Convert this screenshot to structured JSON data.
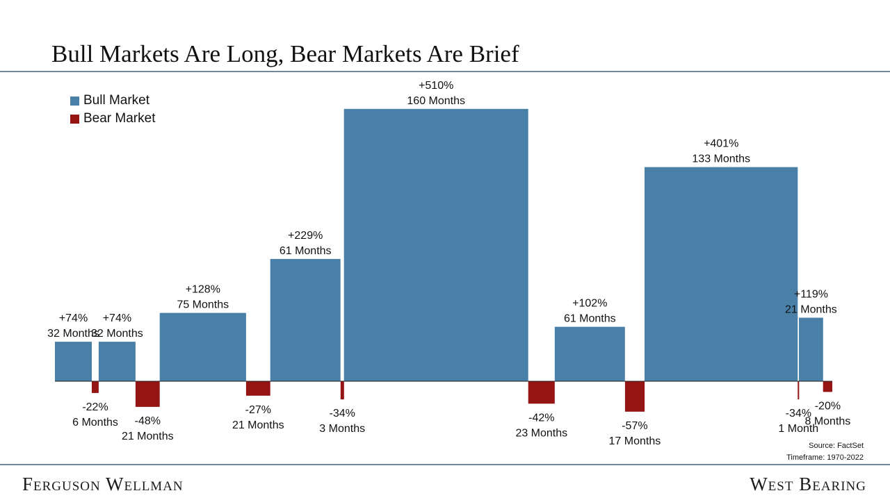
{
  "title": "Bull Markets Are Long, Bear Markets Are Brief",
  "colors": {
    "bull": "#4a80a8",
    "bear": "#951414",
    "rule": "#6f8796"
  },
  "legend": [
    {
      "label": "Bull Market",
      "color": "#4a80a8"
    },
    {
      "label": "Bear Market",
      "color": "#951414"
    }
  ],
  "source": {
    "line1": "Source: FactSet",
    "line2": "Timeframe: 1970-2022"
  },
  "footer": {
    "left_brand": "Ferguson Wellman",
    "right_brand": "West Bearing"
  },
  "chart_data": {
    "type": "bar",
    "x_unit": "months",
    "y_unit": "percent return",
    "segments": [
      {
        "kind": "bull",
        "pct": 74,
        "months": 32,
        "pct_label": "+74%",
        "months_label": "32 Months"
      },
      {
        "kind": "bear",
        "pct": -22,
        "months": 6,
        "pct_label": "-22%",
        "months_label": "6 Months"
      },
      {
        "kind": "bull",
        "pct": 74,
        "months": 32,
        "pct_label": "+74%",
        "months_label": "32 Months"
      },
      {
        "kind": "bear",
        "pct": -48,
        "months": 21,
        "pct_label": "-48%",
        "months_label": "21 Months"
      },
      {
        "kind": "bull",
        "pct": 128,
        "months": 75,
        "pct_label": "+128%",
        "months_label": "75 Months"
      },
      {
        "kind": "bear",
        "pct": -27,
        "months": 21,
        "pct_label": "-27%",
        "months_label": "21 Months"
      },
      {
        "kind": "bull",
        "pct": 229,
        "months": 61,
        "pct_label": "+229%",
        "months_label": "61 Months"
      },
      {
        "kind": "bear",
        "pct": -34,
        "months": 3,
        "pct_label": "-34%",
        "months_label": "3 Months"
      },
      {
        "kind": "bull",
        "pct": 510,
        "months": 160,
        "pct_label": "+510%",
        "months_label": "160 Months"
      },
      {
        "kind": "bear",
        "pct": -42,
        "months": 23,
        "pct_label": "-42%",
        "months_label": "23 Months"
      },
      {
        "kind": "bull",
        "pct": 102,
        "months": 61,
        "pct_label": "+102%",
        "months_label": "61 Months"
      },
      {
        "kind": "bear",
        "pct": -57,
        "months": 17,
        "pct_label": "-57%",
        "months_label": "17 Months"
      },
      {
        "kind": "bull",
        "pct": 401,
        "months": 133,
        "pct_label": "+401%",
        "months_label": "133 Months"
      },
      {
        "kind": "bear",
        "pct": -34,
        "months": 1,
        "pct_label": "-34%",
        "months_label": "1 Month"
      },
      {
        "kind": "bull",
        "pct": 119,
        "months": 21,
        "pct_label": "+119%",
        "months_label": "21 Months"
      },
      {
        "kind": "bear",
        "pct": -20,
        "months": 8,
        "pct_label": "-20%",
        "months_label": "8 Months"
      }
    ]
  }
}
